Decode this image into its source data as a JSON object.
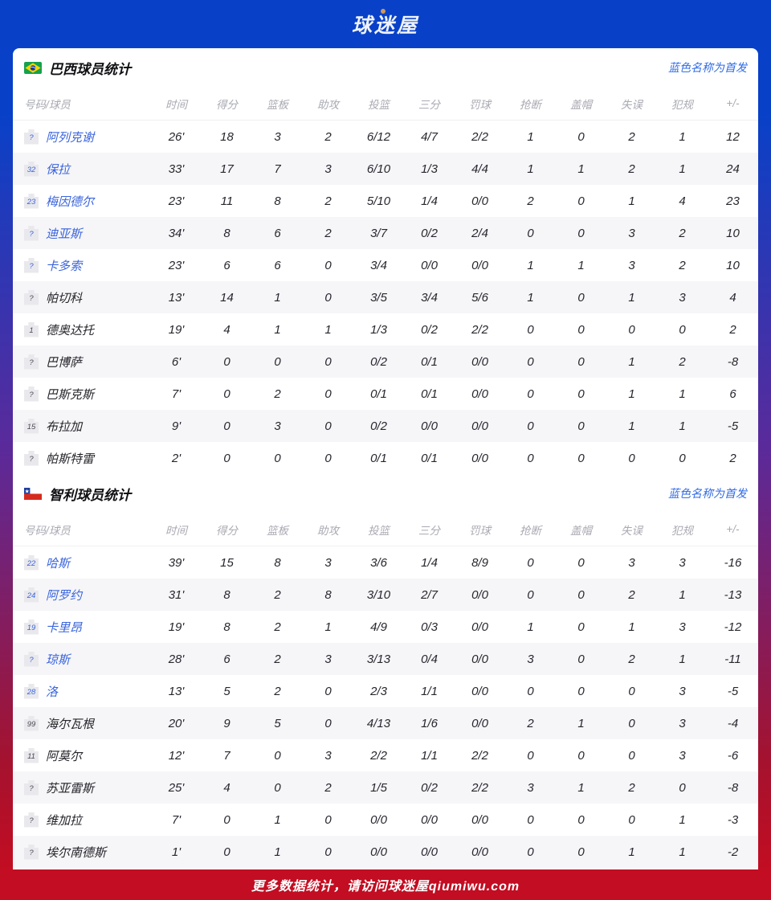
{
  "site": {
    "logo": "球迷屋",
    "footer": "更多数据统计，请访问球迷屋qiumiwu.com"
  },
  "legend": "蓝色名称为首发",
  "columns": [
    "号码/球员",
    "时间",
    "得分",
    "篮板",
    "助攻",
    "投篮",
    "三分",
    "罚球",
    "抢断",
    "盖帽",
    "失误",
    "犯规",
    "+/-"
  ],
  "colors": {
    "header_blue": "#0841c8",
    "footer_red": "#c20d22",
    "link_blue": "#2f6be6",
    "starter_blue": "#3a64dc",
    "row_alt": "#f6f6f8"
  },
  "teams": [
    {
      "title": "巴西球员统计",
      "flag": "brazil-flag",
      "players": [
        {
          "num": "?",
          "name": "阿列克谢",
          "starter": true,
          "stats": [
            "26'",
            "18",
            "3",
            "2",
            "6/12",
            "4/7",
            "2/2",
            "1",
            "0",
            "2",
            "1",
            "12"
          ]
        },
        {
          "num": "32",
          "name": "保拉",
          "starter": true,
          "stats": [
            "33'",
            "17",
            "7",
            "3",
            "6/10",
            "1/3",
            "4/4",
            "1",
            "1",
            "2",
            "1",
            "24"
          ]
        },
        {
          "num": "23",
          "name": "梅因德尔",
          "starter": true,
          "stats": [
            "23'",
            "11",
            "8",
            "2",
            "5/10",
            "1/4",
            "0/0",
            "2",
            "0",
            "1",
            "4",
            "23"
          ]
        },
        {
          "num": "?",
          "name": "迪亚斯",
          "starter": true,
          "stats": [
            "34'",
            "8",
            "6",
            "2",
            "3/7",
            "0/2",
            "2/4",
            "0",
            "0",
            "3",
            "2",
            "10"
          ]
        },
        {
          "num": "?",
          "name": "卡多索",
          "starter": true,
          "stats": [
            "23'",
            "6",
            "6",
            "0",
            "3/4",
            "0/0",
            "0/0",
            "1",
            "1",
            "3",
            "2",
            "10"
          ]
        },
        {
          "num": "?",
          "name": "帕切科",
          "starter": false,
          "stats": [
            "13'",
            "14",
            "1",
            "0",
            "3/5",
            "3/4",
            "5/6",
            "1",
            "0",
            "1",
            "3",
            "4"
          ]
        },
        {
          "num": "1",
          "name": "德奥达托",
          "starter": false,
          "stats": [
            "19'",
            "4",
            "1",
            "1",
            "1/3",
            "0/2",
            "2/2",
            "0",
            "0",
            "0",
            "0",
            "2"
          ]
        },
        {
          "num": "?",
          "name": "巴博萨",
          "starter": false,
          "stats": [
            "6'",
            "0",
            "0",
            "0",
            "0/2",
            "0/1",
            "0/0",
            "0",
            "0",
            "1",
            "2",
            "-8"
          ]
        },
        {
          "num": "?",
          "name": "巴斯克斯",
          "starter": false,
          "stats": [
            "7'",
            "0",
            "2",
            "0",
            "0/1",
            "0/1",
            "0/0",
            "0",
            "0",
            "1",
            "1",
            "6"
          ]
        },
        {
          "num": "15",
          "name": "布拉加",
          "starter": false,
          "stats": [
            "9'",
            "0",
            "3",
            "0",
            "0/2",
            "0/0",
            "0/0",
            "0",
            "0",
            "1",
            "1",
            "-5"
          ]
        },
        {
          "num": "?",
          "name": "帕斯特雷",
          "starter": false,
          "stats": [
            "2'",
            "0",
            "0",
            "0",
            "0/1",
            "0/1",
            "0/0",
            "0",
            "0",
            "0",
            "0",
            "2"
          ]
        }
      ]
    },
    {
      "title": "智利球员统计",
      "flag": "chile-flag",
      "players": [
        {
          "num": "22",
          "name": "哈斯",
          "starter": true,
          "stats": [
            "39'",
            "15",
            "8",
            "3",
            "3/6",
            "1/4",
            "8/9",
            "0",
            "0",
            "3",
            "3",
            "-16"
          ]
        },
        {
          "num": "24",
          "name": "阿罗约",
          "starter": true,
          "stats": [
            "31'",
            "8",
            "2",
            "8",
            "3/10",
            "2/7",
            "0/0",
            "0",
            "0",
            "2",
            "1",
            "-13"
          ]
        },
        {
          "num": "19",
          "name": "卡里昂",
          "starter": true,
          "stats": [
            "19'",
            "8",
            "2",
            "1",
            "4/9",
            "0/3",
            "0/0",
            "1",
            "0",
            "1",
            "3",
            "-12"
          ]
        },
        {
          "num": "?",
          "name": "琼斯",
          "starter": true,
          "stats": [
            "28'",
            "6",
            "2",
            "3",
            "3/13",
            "0/4",
            "0/0",
            "3",
            "0",
            "2",
            "1",
            "-11"
          ]
        },
        {
          "num": "28",
          "name": "洛",
          "starter": true,
          "stats": [
            "13'",
            "5",
            "2",
            "0",
            "2/3",
            "1/1",
            "0/0",
            "0",
            "0",
            "0",
            "3",
            "-5"
          ]
        },
        {
          "num": "99",
          "name": "海尔瓦根",
          "starter": false,
          "stats": [
            "20'",
            "9",
            "5",
            "0",
            "4/13",
            "1/6",
            "0/0",
            "2",
            "1",
            "0",
            "3",
            "-4"
          ]
        },
        {
          "num": "11",
          "name": "阿莫尔",
          "starter": false,
          "stats": [
            "12'",
            "7",
            "0",
            "3",
            "2/2",
            "1/1",
            "2/2",
            "0",
            "0",
            "0",
            "3",
            "-6"
          ]
        },
        {
          "num": "?",
          "name": "苏亚雷斯",
          "starter": false,
          "stats": [
            "25'",
            "4",
            "0",
            "2",
            "1/5",
            "0/2",
            "2/2",
            "3",
            "1",
            "2",
            "0",
            "-8"
          ]
        },
        {
          "num": "?",
          "name": "维加拉",
          "starter": false,
          "stats": [
            "7'",
            "0",
            "1",
            "0",
            "0/0",
            "0/0",
            "0/0",
            "0",
            "0",
            "0",
            "1",
            "-3"
          ]
        },
        {
          "num": "?",
          "name": "埃尔南德斯",
          "starter": false,
          "stats": [
            "1'",
            "0",
            "1",
            "0",
            "0/0",
            "0/0",
            "0/0",
            "0",
            "0",
            "1",
            "1",
            "-2"
          ]
        }
      ]
    }
  ]
}
